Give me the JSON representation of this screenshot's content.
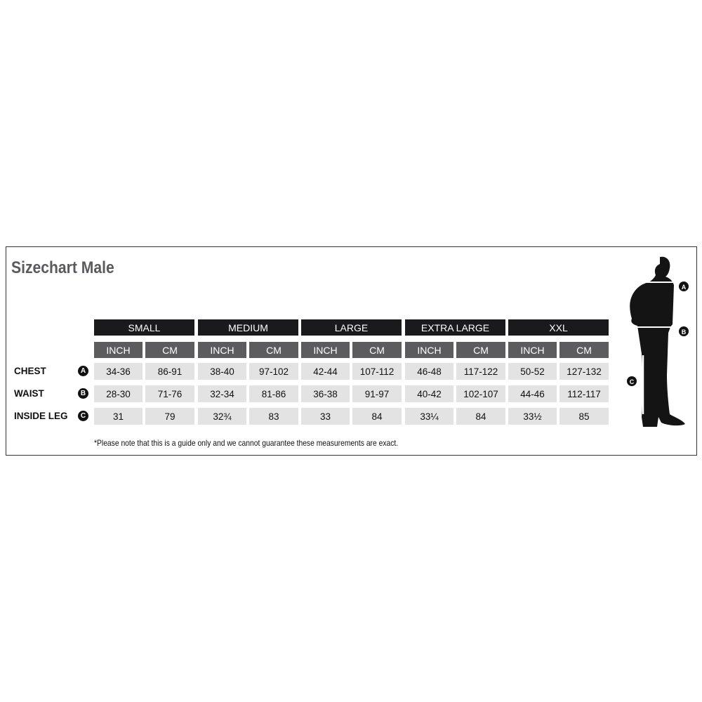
{
  "title": "Sizechart Male",
  "sizes": [
    "SMALL",
    "MEDIUM",
    "LARGE",
    "EXTRA LARGE",
    "XXL"
  ],
  "units": [
    "INCH",
    "CM"
  ],
  "rows": [
    {
      "label": "CHEST",
      "marker": "A",
      "values": [
        "34-36",
        "86-91",
        "38-40",
        "97-102",
        "42-44",
        "107-112",
        "46-48",
        "117-122",
        "50-52",
        "127-132"
      ]
    },
    {
      "label": "WAIST",
      "marker": "B",
      "values": [
        "28-30",
        "71-76",
        "32-34",
        "81-86",
        "36-38",
        "91-97",
        "40-42",
        "102-107",
        "44-46",
        "112-117"
      ]
    },
    {
      "label": "INSIDE LEG",
      "marker": "C",
      "values": [
        "31",
        "79",
        "32¾",
        "83",
        "33",
        "84",
        "33¼",
        "84",
        "33½",
        "85"
      ]
    }
  ],
  "note": "*Please note that this is a guide only and we cannot guarantee these measurements are exact.",
  "figure_markers": [
    "A",
    "B",
    "C"
  ]
}
